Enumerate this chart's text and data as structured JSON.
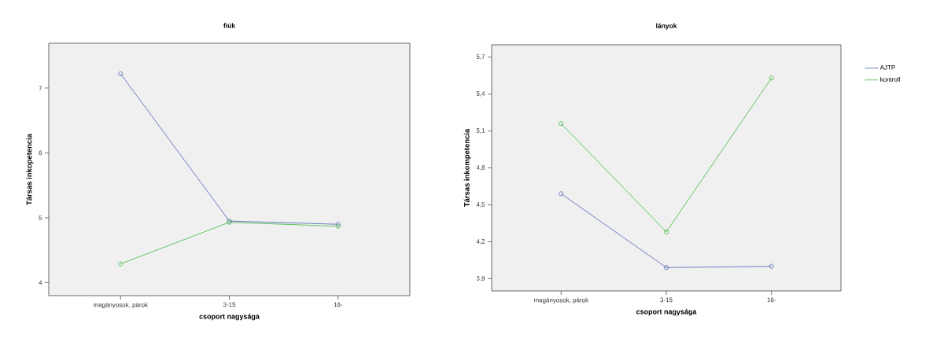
{
  "chart_data": [
    {
      "type": "line",
      "title": "fiúk",
      "xlabel": "csoport nagysága",
      "ylabel": "Társas inkopetencia",
      "categories": [
        "magányosok, párok",
        "3-15",
        "16-"
      ],
      "series": [
        {
          "color": "#5b6fba",
          "values": [
            7.22,
            4.95,
            4.9
          ]
        },
        {
          "color": "#52bd52",
          "values": [
            4.29,
            4.93,
            4.87
          ]
        }
      ],
      "ylim": [
        3.8,
        7.69
      ],
      "yticks": [
        4,
        5,
        6,
        7
      ],
      "grid": false,
      "marker": "circle",
      "line_style": "solid"
    },
    {
      "type": "line",
      "title": "lányok",
      "xlabel": "csoport nagysága",
      "ylabel": "Társas inkompetencia",
      "categories": [
        "magányosok, párok",
        "3-15",
        "16-"
      ],
      "series": [
        {
          "name": "AJTP",
          "color": "#5b6fba",
          "values": [
            4.59,
            3.99,
            4.0
          ]
        },
        {
          "name": "kontroll",
          "color": "#52bd52",
          "values": [
            5.16,
            4.28,
            5.53
          ]
        }
      ],
      "ylim": [
        3.8,
        5.8
      ],
      "yticks": [
        {
          "value": 3.9,
          "label": "3,9"
        },
        {
          "value": 4.2,
          "label": "4,2"
        },
        {
          "value": 4.5,
          "label": "4,5"
        },
        {
          "value": 4.8,
          "label": "4,8"
        },
        {
          "value": 5.1,
          "label": "5,1"
        },
        {
          "value": 5.4,
          "label": "5,4"
        },
        {
          "value": 5.7,
          "label": "5,7"
        }
      ],
      "grid": false,
      "marker": "circle",
      "line_style": "solid",
      "legend": "right"
    }
  ]
}
